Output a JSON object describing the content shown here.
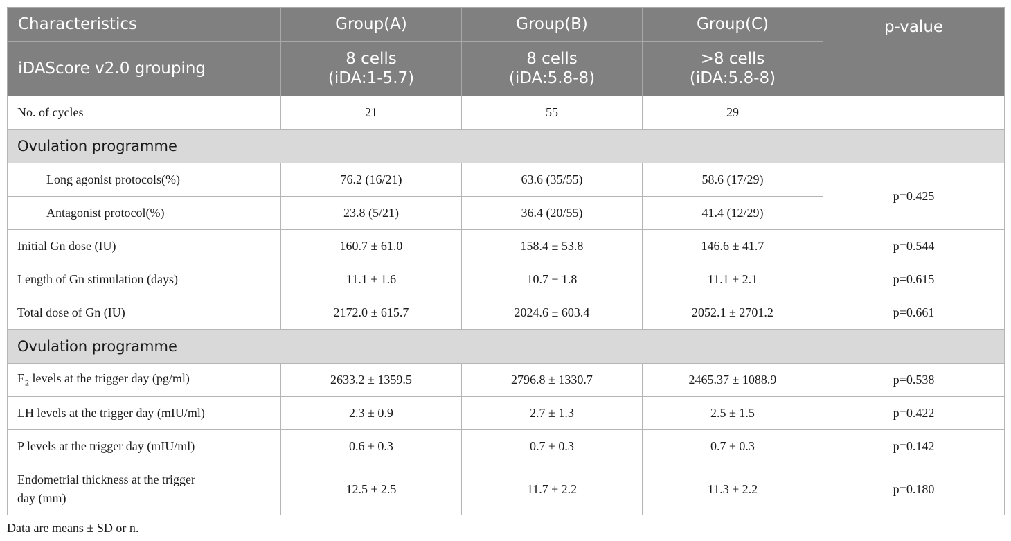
{
  "header": {
    "characteristics": "Characteristics",
    "group_a": "Group(A)",
    "group_b": "Group(B)",
    "group_c": "Group(C)",
    "p_value": "p-value",
    "grouping_label": "iDAScore v2.0 grouping",
    "group_a_cells": "8 cells",
    "group_a_range": "(iDA:1-5.7)",
    "group_b_cells": "8 cells",
    "group_b_range": "(iDA:5.8-8)",
    "group_c_cells": ">8 cells",
    "group_c_range": "(iDA:5.8-8)"
  },
  "cycles": {
    "label": "No. of cycles",
    "a": "21",
    "b": "55",
    "c": "29",
    "p": ""
  },
  "section1": "Ovulation programme",
  "long_agonist": {
    "label": "Long agonist protocols(%)",
    "a": "76.2 (16/21)",
    "b": "63.6 (35/55)",
    "c": "58.6 (17/29)"
  },
  "antagonist": {
    "label": "Antagonist protocol(%)",
    "a": "23.8 (5/21)",
    "b": "36.4 (20/55)",
    "c": "41.4 (12/29)"
  },
  "protocol_p": "p=0.425",
  "initial_gn": {
    "label": "Initial Gn dose (IU)",
    "a": "160.7 ± 61.0",
    "b": "158.4 ± 53.8",
    "c": "146.6 ± 41.7",
    "p": "p=0.544"
  },
  "length_gn": {
    "label": "Length of Gn stimulation (days)",
    "a": "11.1 ± 1.6",
    "b": "10.7 ± 1.8",
    "c": "11.1 ± 2.1",
    "p": "p=0.615"
  },
  "total_gn": {
    "label": "Total dose of Gn (IU)",
    "a": "2172.0 ± 615.7",
    "b": "2024.6 ± 603.4",
    "c": "2052.1 ± 2701.2",
    "p": "p=0.661"
  },
  "section2": "Ovulation programme",
  "e2": {
    "label_pre": "E",
    "label_sub": "2",
    "label_post": " levels at the trigger day (pg/ml)",
    "a": "2633.2 ± 1359.5",
    "b": "2796.8 ± 1330.7",
    "c": "2465.37 ± 1088.9",
    "p": "p=0.538"
  },
  "lh": {
    "label": "LH levels at the trigger day (mIU/ml)",
    "a": "2.3 ± 0.9",
    "b": "2.7 ± 1.3",
    "c": "2.5 ± 1.5",
    "p": "p=0.422"
  },
  "p_levels": {
    "label": "P levels at the trigger day (mIU/ml)",
    "a": "0.6 ± 0.3",
    "b": "0.7 ± 0.3",
    "c": "0.7 ± 0.3",
    "p": "p=0.142"
  },
  "endometrial": {
    "label_line1": "Endometrial thickness at the trigger",
    "label_line2": "day (mm)",
    "a": "12.5 ± 2.5",
    "b": "11.7 ± 2.2",
    "c": "11.3 ± 2.2",
    "p": "p=0.180"
  },
  "footnote": "Data are means ± SD or n."
}
